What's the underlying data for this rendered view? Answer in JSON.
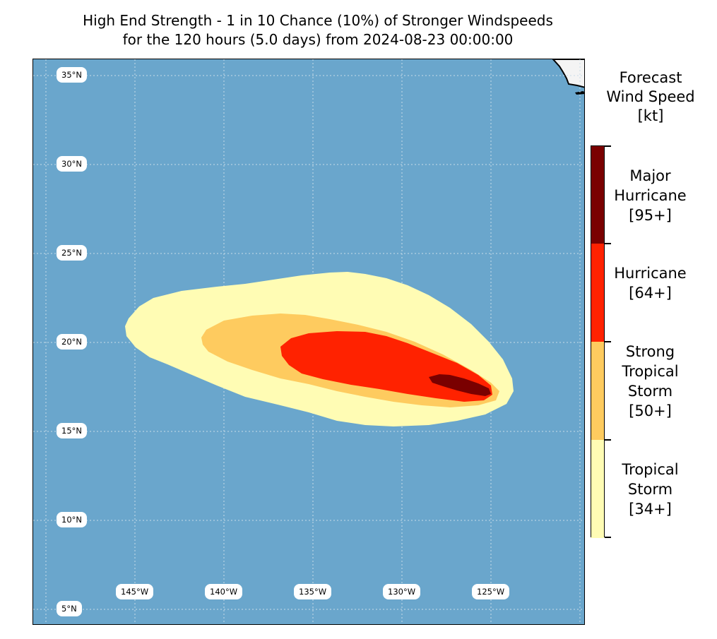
{
  "title": {
    "line1": "High End Strength - 1 in 10 Chance (10%) of Stronger Windspeeds",
    "line2": "for the 120 hours (5.0 days) from 2024-08-23 00:00:00"
  },
  "map": {
    "ocean_color": "#6aa6cc",
    "land_color": "#f4f4f4",
    "lat_labels": [
      "35°N",
      "30°N",
      "25°N",
      "20°N",
      "15°N",
      "10°N",
      "5°N"
    ],
    "lon_labels": [
      "145°W",
      "140°W",
      "135°W",
      "130°W",
      "125°W"
    ]
  },
  "legend": {
    "title_lines": [
      "Forecast",
      "Wind Speed",
      "[kt]"
    ],
    "categories": [
      {
        "lines": [
          "Major",
          "Hurricane",
          "[95+]"
        ],
        "color": "#7a0000"
      },
      {
        "lines": [
          "Hurricane",
          "[64+]"
        ],
        "color": "#ff2200"
      },
      {
        "lines": [
          "Strong",
          "Tropical",
          "Storm",
          "[50+]"
        ],
        "color": "#fecb5f"
      },
      {
        "lines": [
          "Tropical",
          "Storm",
          "[34+]"
        ],
        "color": "#fffcb4"
      }
    ]
  }
}
